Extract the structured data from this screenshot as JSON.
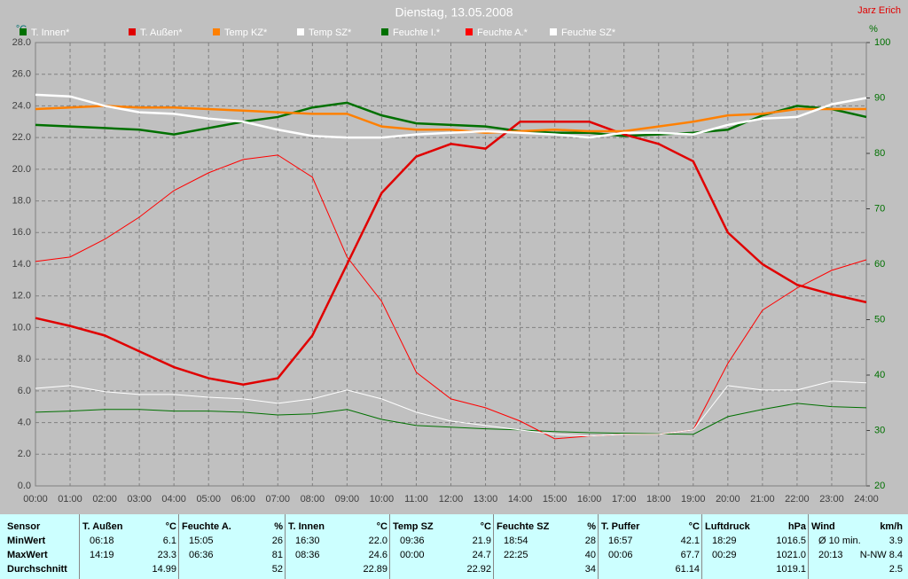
{
  "chart_data": {
    "type": "line",
    "title": "Dienstag, 13.05.2008",
    "author": "Jarz Erich",
    "y_unit": "°C",
    "y2_unit": "%",
    "x": [
      0,
      1,
      2,
      3,
      4,
      5,
      6,
      7,
      8,
      9,
      10,
      11,
      12,
      13,
      14,
      15,
      16,
      17,
      18,
      19,
      20,
      21,
      22,
      23,
      24
    ],
    "xlim": [
      0,
      24
    ],
    "xticks": [
      {
        "value": 0,
        "label": "00:00"
      },
      {
        "value": 1,
        "label": "01:00"
      },
      {
        "value": 2,
        "label": "02:00"
      },
      {
        "value": 3,
        "label": "03:00"
      },
      {
        "value": 4,
        "label": "04:00"
      },
      {
        "value": 5,
        "label": "05:00"
      },
      {
        "value": 6,
        "label": "06:00"
      },
      {
        "value": 7,
        "label": "07:00"
      },
      {
        "value": 8,
        "label": "08:00"
      },
      {
        "value": 9,
        "label": "09:00"
      },
      {
        "value": 10,
        "label": "10:00"
      },
      {
        "value": 11,
        "label": "11:00"
      },
      {
        "value": 12,
        "label": "12:00"
      },
      {
        "value": 13,
        "label": "13:00"
      },
      {
        "value": 14,
        "label": "14:00"
      },
      {
        "value": 15,
        "label": "15:00"
      },
      {
        "value": 16,
        "label": "16:00"
      },
      {
        "value": 17,
        "label": "17:00"
      },
      {
        "value": 18,
        "label": "18:00"
      },
      {
        "value": 19,
        "label": "19:00"
      },
      {
        "value": 20,
        "label": "20:00"
      },
      {
        "value": 21,
        "label": "21:00"
      },
      {
        "value": 22,
        "label": "22:00"
      },
      {
        "value": 23,
        "label": "23:00"
      },
      {
        "value": 24,
        "label": "24:00"
      }
    ],
    "ylim": [
      0,
      28
    ],
    "yticks": [
      {
        "value": 0,
        "label": "0.0"
      },
      {
        "value": 2,
        "label": "2.0"
      },
      {
        "value": 4,
        "label": "4.0"
      },
      {
        "value": 6,
        "label": "6.0"
      },
      {
        "value": 8,
        "label": "8.0"
      },
      {
        "value": 10,
        "label": "10.0"
      },
      {
        "value": 12,
        "label": "12.0"
      },
      {
        "value": 14,
        "label": "14.0"
      },
      {
        "value": 16,
        "label": "16.0"
      },
      {
        "value": 18,
        "label": "18.0"
      },
      {
        "value": 20,
        "label": "20.0"
      },
      {
        "value": 22,
        "label": "22.0"
      },
      {
        "value": 24,
        "label": "24.0"
      },
      {
        "value": 26,
        "label": "26.0"
      },
      {
        "value": 28,
        "label": "28.0"
      }
    ],
    "y2lim": [
      20,
      100
    ],
    "y2ticks": [
      20,
      30,
      40,
      50,
      60,
      70,
      80,
      90,
      100
    ],
    "grid": true,
    "series": [
      {
        "name": "T. Innen*",
        "color": "#007000",
        "values": [
          22.8,
          22.7,
          22.6,
          22.5,
          22.2,
          22.6,
          23.0,
          23.3,
          23.9,
          24.2,
          23.4,
          22.9,
          22.8,
          22.7,
          22.4,
          22.3,
          22.3,
          22.1,
          22.2,
          22.3,
          22.5,
          23.4,
          24.0,
          23.8,
          23.3
        ]
      },
      {
        "name": "T. Außen*",
        "color": "#e00000",
        "values": [
          10.6,
          10.1,
          9.5,
          8.5,
          7.5,
          6.8,
          6.4,
          6.8,
          9.5,
          14.0,
          18.5,
          20.8,
          21.6,
          21.3,
          23.0,
          23.0,
          23.0,
          22.2,
          21.6,
          20.5,
          16.0,
          14.0,
          12.7,
          12.1,
          11.6
        ]
      },
      {
        "name": "Temp KZ*",
        "color": "#ff8000",
        "values": [
          23.8,
          23.9,
          24.0,
          23.9,
          23.9,
          23.8,
          23.7,
          23.6,
          23.5,
          23.5,
          22.7,
          22.5,
          22.5,
          22.3,
          22.4,
          22.5,
          22.4,
          22.4,
          22.7,
          23.0,
          23.4,
          23.5,
          23.8,
          23.8,
          23.8
        ]
      },
      {
        "name": "Temp SZ*",
        "color": "#ffffff",
        "values": [
          24.7,
          24.6,
          24.0,
          23.6,
          23.5,
          23.2,
          23.0,
          22.5,
          22.1,
          22.0,
          22.0,
          22.2,
          22.3,
          22.4,
          22.3,
          22.2,
          22.0,
          22.3,
          22.3,
          22.2,
          22.8,
          23.2,
          23.3,
          24.1,
          24.5
        ]
      },
      {
        "name": "Feuchte I.*",
        "color": "#007000",
        "axis": "y2",
        "values": [
          33.3,
          33.5,
          33.8,
          33.8,
          33.5,
          33.5,
          33.3,
          32.8,
          33.0,
          33.8,
          32.0,
          30.9,
          30.6,
          30.3,
          30.1,
          29.8,
          29.6,
          29.5,
          29.4,
          29.3,
          32.5,
          33.8,
          34.9,
          34.3,
          34.1
        ]
      },
      {
        "name": "Feuchte A.*",
        "color": "#ff0000",
        "axis": "y2",
        "values": [
          60.5,
          61.3,
          64.5,
          68.5,
          73.3,
          76.5,
          78.9,
          79.7,
          75.7,
          61.3,
          53.3,
          40.5,
          35.7,
          34.1,
          31.7,
          28.5,
          29.0,
          29.3,
          29.3,
          30.1,
          42.1,
          51.7,
          55.7,
          58.9,
          60.8
        ]
      },
      {
        "name": "Feuchte SZ*",
        "color": "#ffffff",
        "axis": "y2",
        "values": [
          37.6,
          38.1,
          37.0,
          36.5,
          36.5,
          36.0,
          35.7,
          34.9,
          35.7,
          37.3,
          35.7,
          33.3,
          31.7,
          30.9,
          30.1,
          29.3,
          29.0,
          29.3,
          29.3,
          30.1,
          38.1,
          37.3,
          37.3,
          38.9,
          38.6
        ]
      }
    ]
  },
  "table": {
    "row_labels": [
      "Sensor",
      "MinWert",
      "MaxWert",
      "Durchschnitt"
    ],
    "groups": [
      {
        "name": "T. Außen",
        "unit": "°C",
        "min": [
          "06:18",
          "6.1"
        ],
        "max": [
          "14:19",
          "23.3"
        ],
        "avg": "14.99"
      },
      {
        "name": "Feuchte A.",
        "unit": "%",
        "min": [
          "15:05",
          "26"
        ],
        "max": [
          "06:36",
          "81"
        ],
        "avg": "52"
      },
      {
        "name": "T. Innen",
        "unit": "°C",
        "min": [
          "16:30",
          "22.0"
        ],
        "max": [
          "08:36",
          "24.6"
        ],
        "avg": "22.89"
      },
      {
        "name": "Temp SZ",
        "unit": "°C",
        "min": [
          "09:36",
          "21.9"
        ],
        "max": [
          "00:00",
          "24.7"
        ],
        "avg": "22.92"
      },
      {
        "name": "Feuchte SZ",
        "unit": "%",
        "min": [
          "18:54",
          "28"
        ],
        "max": [
          "22:25",
          "40"
        ],
        "avg": "34"
      },
      {
        "name": "T. Puffer",
        "unit": "°C",
        "min": [
          "16:57",
          "42.1"
        ],
        "max": [
          "00:06",
          "67.7"
        ],
        "avg": "61.14"
      },
      {
        "name": "Luftdruck",
        "unit": "hPa",
        "min": [
          "18:29",
          "1016.5"
        ],
        "max": [
          "00:29",
          "1021.0"
        ],
        "avg": "1019.1"
      },
      {
        "name": "Wind",
        "unit": "km/h",
        "min": [
          "Ø 10 min.",
          "3.9"
        ],
        "max": [
          "20:13",
          "N-NW 8.4"
        ],
        "avg": "2.5"
      }
    ]
  }
}
